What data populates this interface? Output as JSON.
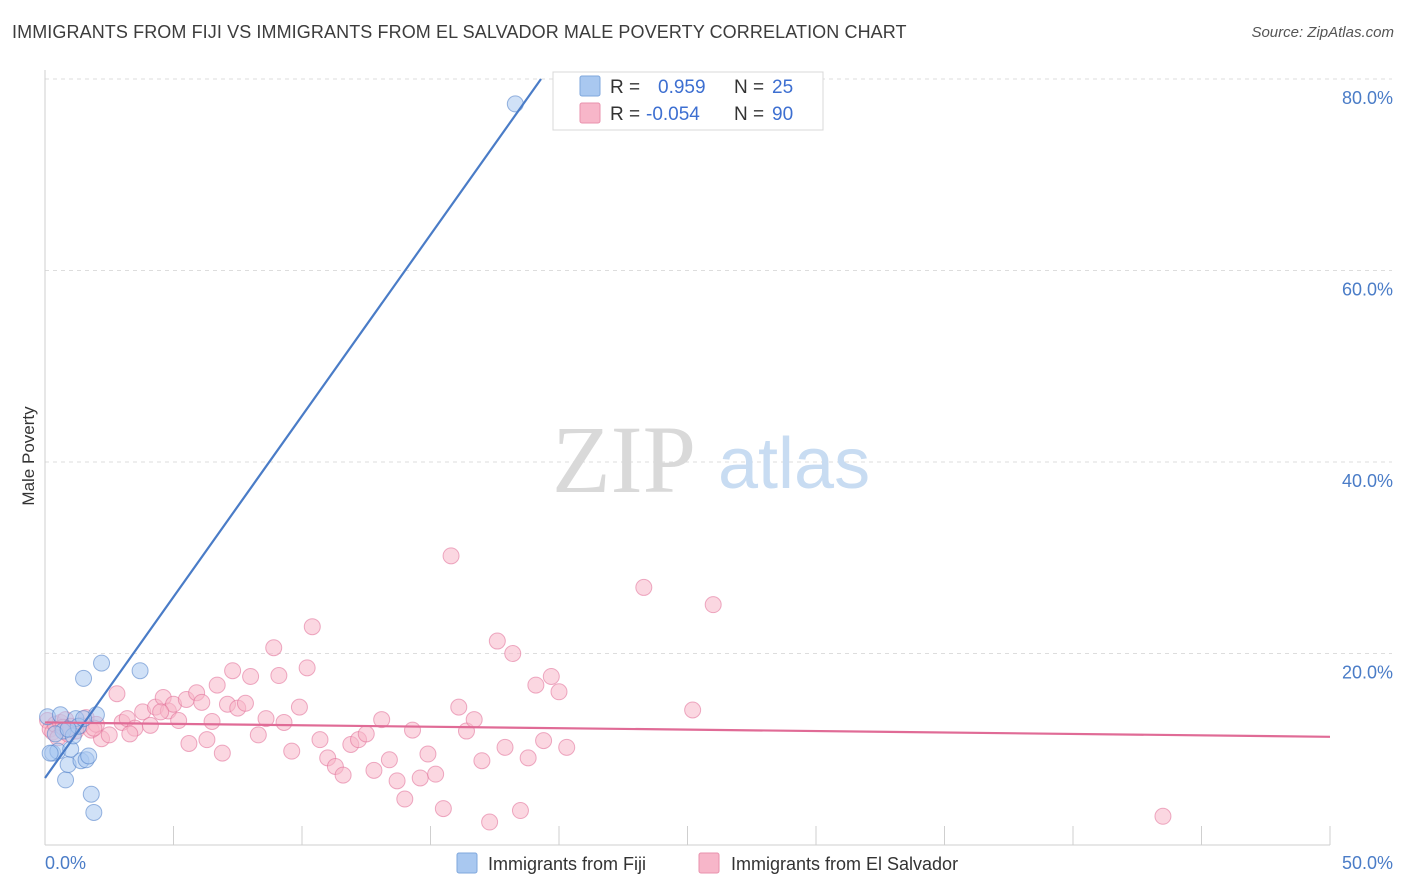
{
  "header": {
    "title": "IMMIGRANTS FROM FIJI VS IMMIGRANTS FROM EL SALVADOR MALE POVERTY CORRELATION CHART",
    "source": "Source: ZipAtlas.com"
  },
  "watermark": {
    "zip": "ZIP",
    "atlas": "atlas"
  },
  "legend": {
    "rows": [
      {
        "r_label": "R =",
        "r_value": "0.959",
        "n_label": "N =",
        "n_value": "25",
        "color": "#a9c8f0"
      },
      {
        "r_label": "R =",
        "r_value": "-0.054",
        "n_label": "N =",
        "n_value": "90",
        "color": "#f7b6c9"
      }
    ]
  },
  "bottom_legend": [
    {
      "label": "Immigrants from Fiji",
      "color": "#a9c8f0"
    },
    {
      "label": "Immigrants from El Salvador",
      "color": "#f7b6c9"
    }
  ],
  "chart_data": {
    "type": "scatter",
    "title": "IMMIGRANTS FROM FIJI VS IMMIGRANTS FROM EL SALVADOR MALE POVERTY CORRELATION CHART",
    "xlabel": "",
    "ylabel": "Male Poverty",
    "xlim": [
      0,
      50
    ],
    "ylim": [
      0,
      80
    ],
    "x_tick_labels": [
      "0.0%",
      "50.0%"
    ],
    "y_ticks": [
      20,
      40,
      60,
      80
    ],
    "y_tick_labels": [
      "20.0%",
      "40.0%",
      "60.0%",
      "80.0%"
    ],
    "grid": true,
    "legend_position": "top-center",
    "series": [
      {
        "name": "Immigrants from Fiji",
        "color": "#4a7cc7",
        "fill": "#a9c8f0",
        "points": [
          [
            0.1,
            13.4
          ],
          [
            0.3,
            9.6
          ],
          [
            0.5,
            9.8
          ],
          [
            0.6,
            13.6
          ],
          [
            0.7,
            11.9
          ],
          [
            0.8,
            6.8
          ],
          [
            0.9,
            8.4
          ],
          [
            1.0,
            10.0
          ],
          [
            1.1,
            11.4
          ],
          [
            1.2,
            13.2
          ],
          [
            1.3,
            12.4
          ],
          [
            1.4,
            8.8
          ],
          [
            1.5,
            17.4
          ],
          [
            1.6,
            8.9
          ],
          [
            1.7,
            9.3
          ],
          [
            1.8,
            5.3
          ],
          [
            1.9,
            3.4
          ],
          [
            2.0,
            13.6
          ],
          [
            2.2,
            19.0
          ],
          [
            3.7,
            18.2
          ],
          [
            18.3,
            77.4
          ],
          [
            0.2,
            9.6
          ],
          [
            0.4,
            11.6
          ],
          [
            0.9,
            12.1
          ],
          [
            1.5,
            13.2
          ]
        ],
        "trend": [
          [
            0,
            7.0
          ],
          [
            19.3,
            80.0
          ]
        ]
      },
      {
        "name": "Immigrants from El Salvador",
        "color": "#e06b96",
        "fill": "#f7b6c9",
        "points": [
          [
            0.1,
            13.0
          ],
          [
            0.2,
            12.1
          ],
          [
            0.3,
            11.8
          ],
          [
            0.4,
            12.6
          ],
          [
            0.5,
            11.2
          ],
          [
            0.6,
            12.8
          ],
          [
            0.8,
            13.1
          ],
          [
            0.9,
            11.6
          ],
          [
            1.0,
            12.4
          ],
          [
            1.2,
            11.9
          ],
          [
            1.4,
            12.5
          ],
          [
            1.6,
            13.3
          ],
          [
            1.8,
            12.0
          ],
          [
            2.0,
            12.6
          ],
          [
            2.2,
            11.1
          ],
          [
            2.5,
            11.5
          ],
          [
            2.8,
            15.8
          ],
          [
            3.0,
            12.8
          ],
          [
            3.2,
            13.2
          ],
          [
            3.5,
            12.2
          ],
          [
            3.8,
            13.9
          ],
          [
            4.1,
            12.5
          ],
          [
            4.3,
            14.4
          ],
          [
            4.6,
            15.4
          ],
          [
            4.8,
            14.0
          ],
          [
            5.0,
            14.7
          ],
          [
            5.2,
            13.0
          ],
          [
            5.5,
            15.2
          ],
          [
            5.6,
            10.6
          ],
          [
            5.9,
            15.9
          ],
          [
            6.1,
            14.9
          ],
          [
            6.3,
            11.0
          ],
          [
            6.5,
            12.9
          ],
          [
            6.7,
            16.7
          ],
          [
            6.9,
            9.6
          ],
          [
            7.1,
            14.7
          ],
          [
            7.3,
            18.2
          ],
          [
            7.5,
            14.3
          ],
          [
            7.8,
            14.8
          ],
          [
            8.0,
            17.6
          ],
          [
            8.3,
            11.5
          ],
          [
            8.6,
            13.2
          ],
          [
            8.9,
            20.6
          ],
          [
            9.1,
            17.7
          ],
          [
            9.3,
            12.8
          ],
          [
            9.6,
            9.8
          ],
          [
            9.9,
            14.4
          ],
          [
            10.2,
            18.5
          ],
          [
            10.4,
            22.8
          ],
          [
            10.7,
            11.0
          ],
          [
            11.0,
            9.1
          ],
          [
            11.3,
            8.2
          ],
          [
            11.6,
            7.3
          ],
          [
            11.9,
            10.5
          ],
          [
            12.2,
            11.0
          ],
          [
            12.5,
            11.6
          ],
          [
            12.8,
            7.8
          ],
          [
            13.1,
            13.1
          ],
          [
            13.4,
            8.9
          ],
          [
            13.7,
            6.7
          ],
          [
            14.0,
            4.8
          ],
          [
            14.3,
            12.0
          ],
          [
            14.6,
            7.0
          ],
          [
            14.9,
            9.5
          ],
          [
            15.2,
            7.4
          ],
          [
            15.5,
            3.8
          ],
          [
            15.8,
            30.2
          ],
          [
            16.1,
            14.4
          ],
          [
            16.4,
            11.9
          ],
          [
            16.7,
            13.1
          ],
          [
            17.0,
            8.8
          ],
          [
            17.3,
            2.4
          ],
          [
            17.6,
            21.3
          ],
          [
            17.9,
            10.2
          ],
          [
            18.2,
            20.0
          ],
          [
            18.5,
            3.6
          ],
          [
            18.8,
            9.1
          ],
          [
            19.1,
            16.7
          ],
          [
            19.4,
            10.9
          ],
          [
            19.7,
            17.6
          ],
          [
            20.0,
            16.0
          ],
          [
            20.3,
            10.2
          ],
          [
            23.3,
            26.9
          ],
          [
            25.2,
            14.1
          ],
          [
            26.0,
            25.1
          ],
          [
            43.5,
            3.0
          ],
          [
            0.7,
            12.3
          ],
          [
            1.9,
            12.2
          ],
          [
            3.3,
            11.6
          ],
          [
            4.5,
            13.9
          ]
        ],
        "trend": [
          [
            0,
            12.8
          ],
          [
            50,
            11.3
          ]
        ]
      }
    ]
  }
}
